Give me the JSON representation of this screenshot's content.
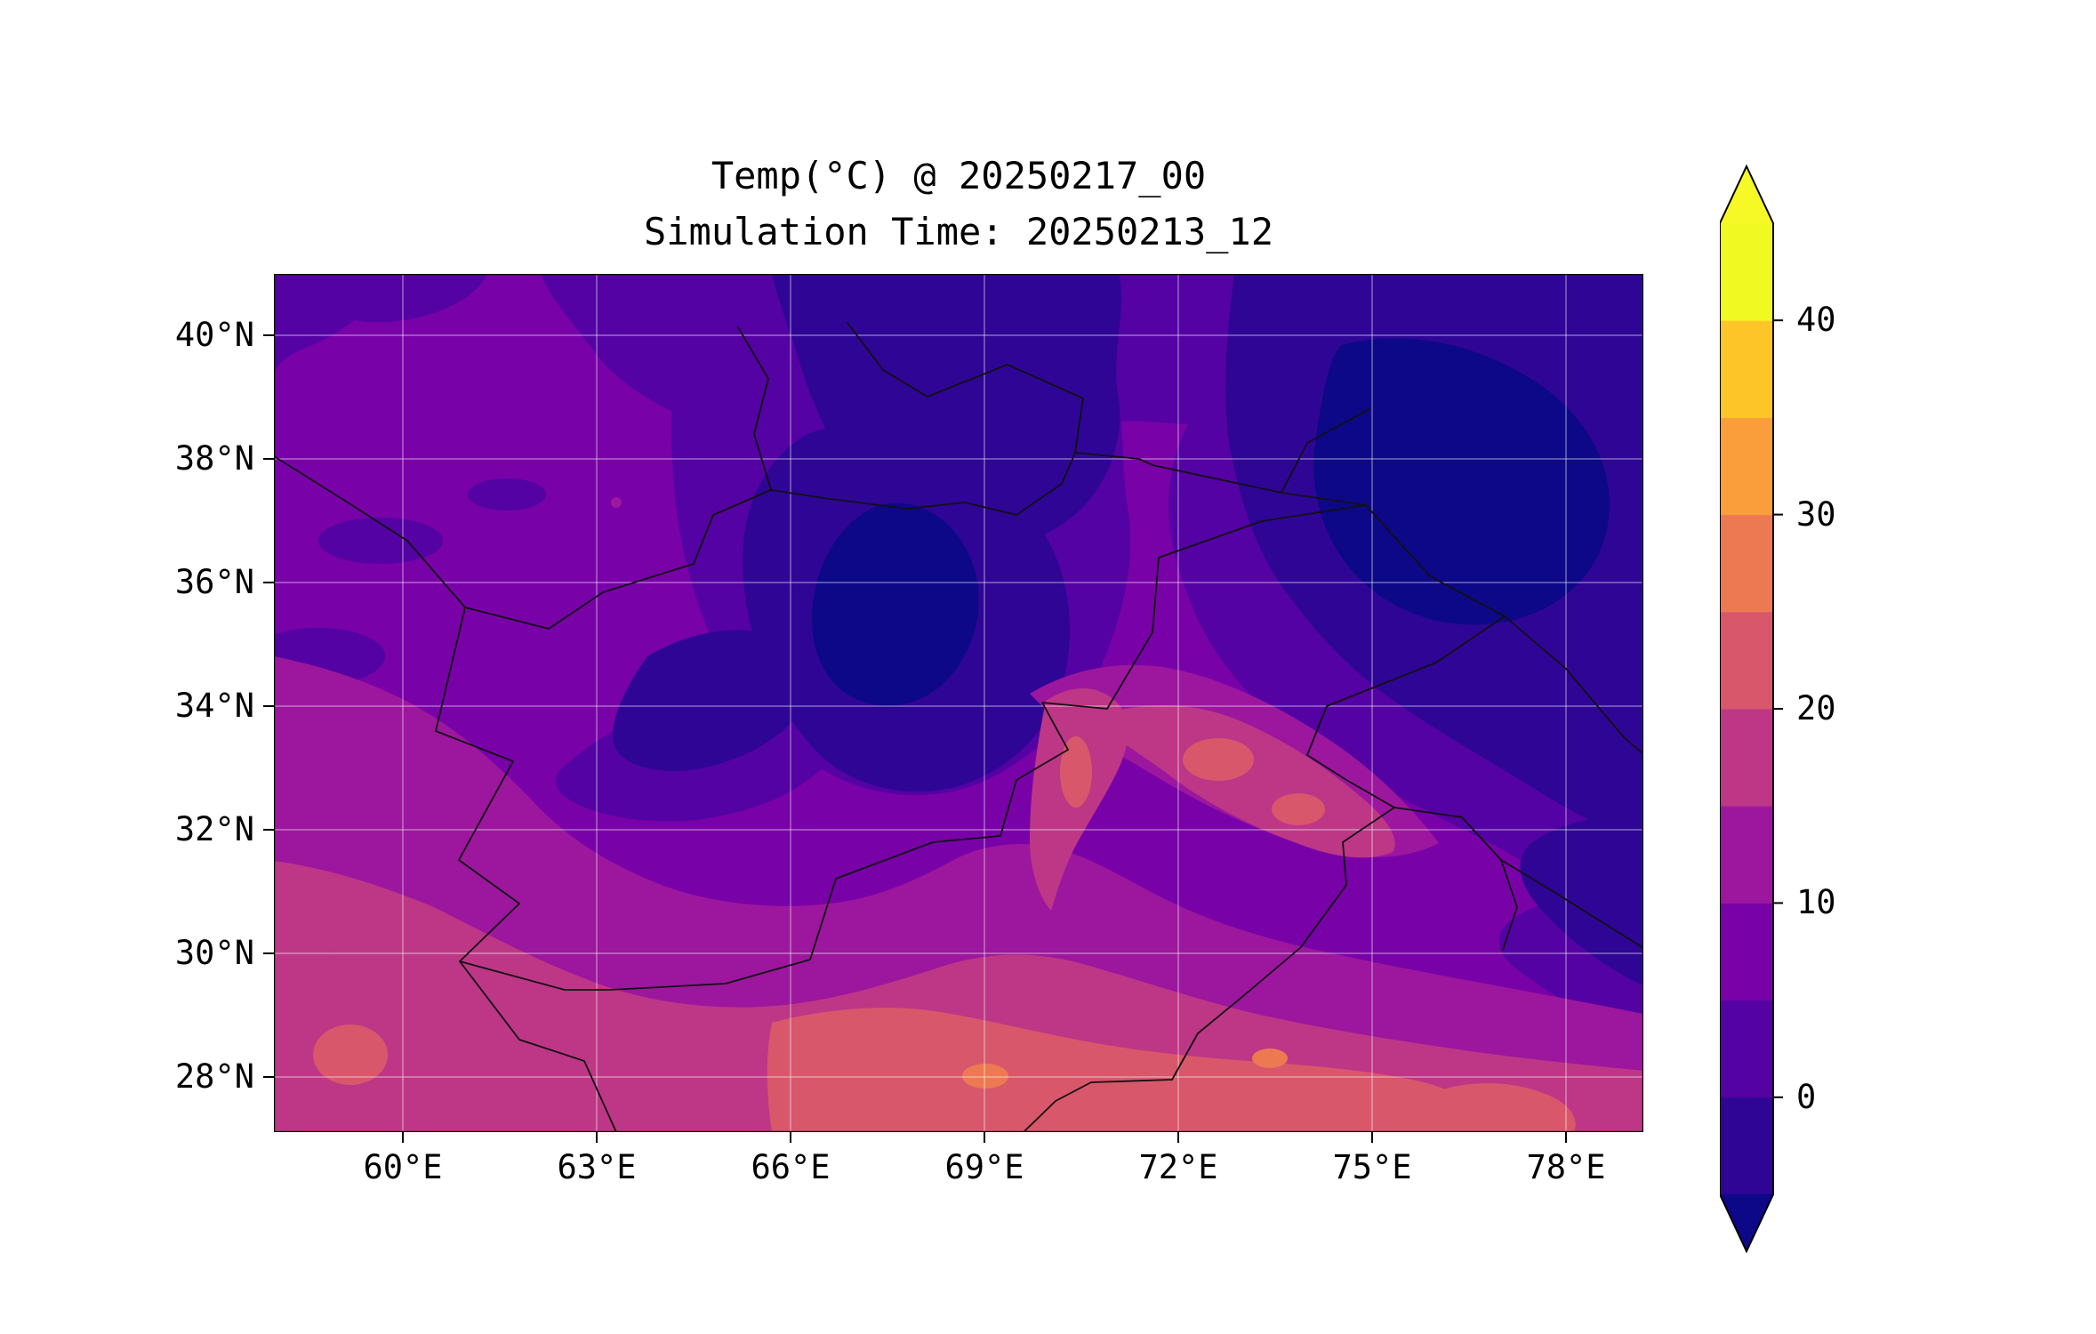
{
  "title": {
    "line1": "Temp(°C) @ 20250217_00",
    "line2": "Simulation Time: 20250213_12"
  },
  "axes": {
    "x_tick_labels": [
      "60°E",
      "63°E",
      "66°E",
      "69°E",
      "72°E",
      "75°E",
      "78°E"
    ],
    "y_tick_labels": [
      "40°N",
      "38°N",
      "36°N",
      "34°N",
      "32°N",
      "30°N",
      "28°N"
    ]
  },
  "colorbar": {
    "tick_labels": [
      "40",
      "30",
      "20",
      "10",
      "0"
    ],
    "tick_values": [
      40,
      30,
      20,
      10,
      0
    ],
    "levels": [
      -5,
      0,
      5,
      10,
      15,
      20,
      25,
      30,
      35,
      40,
      45
    ],
    "band_colors": [
      "#2f0596",
      "#5402a3",
      "#7801a8",
      "#9c179e",
      "#bd3786",
      "#d8576b",
      "#ed7953",
      "#fa9e3b",
      "#fdc527",
      "#f0f921"
    ],
    "under_color": "#0d0887",
    "over_color": "#f6f926",
    "extend": "both"
  },
  "map": {
    "border_color": "#111111",
    "grid_color": "#ffffff"
  },
  "chart_data": {
    "type": "heatmap",
    "title": "Temp(°C) @ 20250217_00",
    "subtitle": "Simulation Time: 20250213_12",
    "variable": "Temp (°C)",
    "valid_time": "20250217_00",
    "simulation_time": "20250213_12",
    "xlabel": "",
    "ylabel": "",
    "x_tick_labels": [
      "60°E",
      "63°E",
      "66°E",
      "69°E",
      "72°E",
      "75°E",
      "78°E"
    ],
    "y_tick_labels": [
      "40°N",
      "38°N",
      "36°N",
      "34°N",
      "32°N",
      "30°N",
      "28°N"
    ],
    "lon_range": [
      58.1,
      79.4
    ],
    "lat_range": [
      27.1,
      40.9
    ],
    "levels": [
      -5,
      0,
      5,
      10,
      15,
      20,
      25,
      30,
      35,
      40,
      45
    ],
    "colorbar_extend": "both",
    "colorbar_tick_labels": [
      "40",
      "30",
      "20",
      "10",
      "0"
    ],
    "grid": true,
    "legend_position": "right colorbar",
    "estimated_grid": {
      "lons": [
        59,
        61,
        63,
        65,
        67,
        69,
        71,
        73,
        75,
        77,
        79
      ],
      "lats": [
        40,
        38,
        36,
        34,
        32,
        30,
        28
      ],
      "values_degC": [
        [
          4,
          6,
          3,
          -2,
          -3,
          -3,
          2,
          -1,
          -2,
          -2,
          -3
        ],
        [
          6,
          5,
          4,
          2,
          -2,
          -2,
          4,
          2,
          -2,
          -3,
          -3
        ],
        [
          7,
          6,
          4,
          -1,
          -3,
          -2,
          3,
          6,
          -2,
          -3,
          -3
        ],
        [
          9,
          8,
          6,
          -2,
          -3,
          -1,
          14,
          17,
          8,
          -2,
          -3
        ],
        [
          11,
          9,
          8,
          4,
          2,
          8,
          19,
          16,
          14,
          2,
          -2
        ],
        [
          13,
          12,
          10,
          9,
          9,
          16,
          17,
          16,
          15,
          8,
          2
        ],
        [
          17,
          16,
          13,
          12,
          14,
          19,
          21,
          23,
          22,
          16,
          12
        ]
      ]
    }
  }
}
